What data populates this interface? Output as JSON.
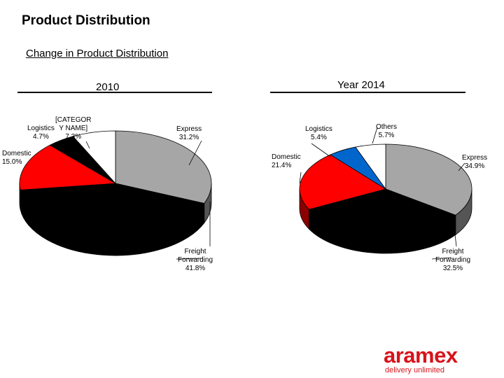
{
  "page": {
    "title": "Product Distribution",
    "subtitle": "Change in Product Distribution"
  },
  "chart_data": [
    {
      "type": "pie",
      "title": "2010",
      "slices": [
        {
          "label": "Express",
          "value": 31.2,
          "value_label": "31.2%",
          "color": "#a6a6a6"
        },
        {
          "label": "Freight Forwarding",
          "value": 41.8,
          "value_label": "41.8%",
          "color": "#000000"
        },
        {
          "label": "Domestic",
          "value": 15.0,
          "value_label": "15.0%",
          "color": "#ff0000"
        },
        {
          "label": "Logistics",
          "value": 4.7,
          "value_label": "4.7%",
          "color": "#000000"
        },
        {
          "label": "[CATEGORY NAME]",
          "value": 7.3,
          "value_label": "7.3%",
          "color": "#ffffff"
        }
      ]
    },
    {
      "type": "pie",
      "title": "Year 2014",
      "slices": [
        {
          "label": "Express",
          "value": 34.9,
          "value_label": "34.9%",
          "color": "#a6a6a6"
        },
        {
          "label": "Freight Forwarding",
          "value": 32.5,
          "value_label": "32.5%",
          "color": "#000000"
        },
        {
          "label": "Domestic",
          "value": 21.4,
          "value_label": "21.4%",
          "color": "#ff0000"
        },
        {
          "label": "Logistics",
          "value": 5.4,
          "value_label": "5.4%",
          "color": "#0066cc"
        },
        {
          "label": "Others",
          "value": 5.7,
          "value_label": "5.7%",
          "color": "#ffffff"
        }
      ]
    }
  ],
  "logo": {
    "name": "aramex",
    "tagline": "delivery unlimited",
    "color": "#d7131a"
  }
}
